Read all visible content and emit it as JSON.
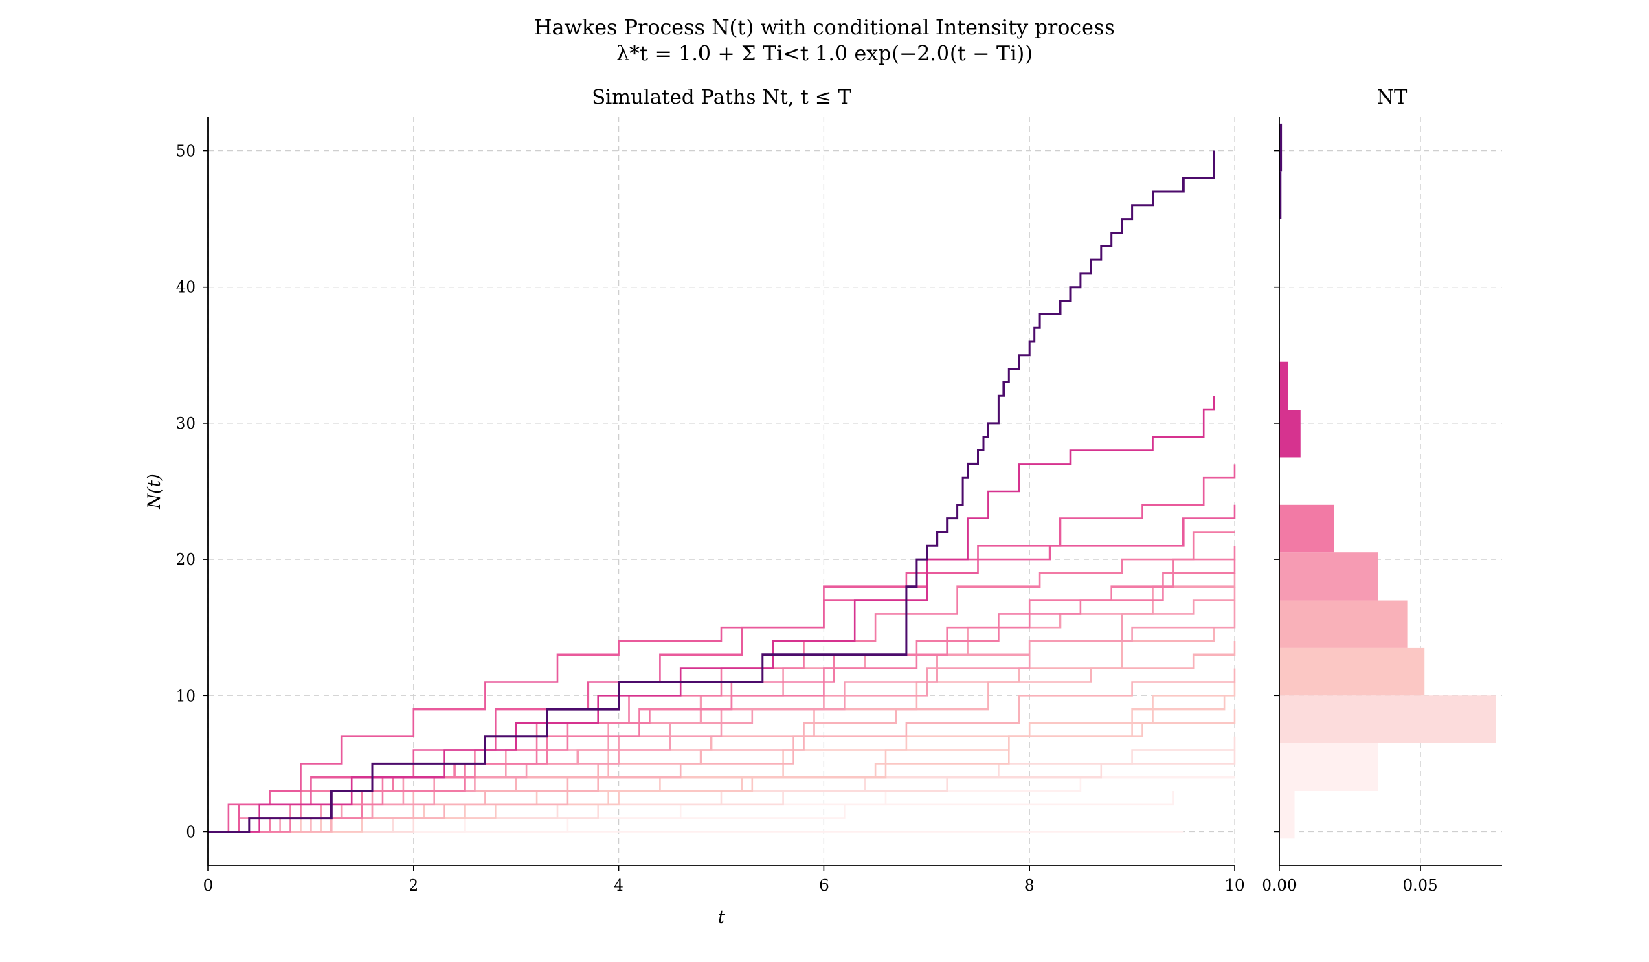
{
  "suptitle_line1": "Hawkes Process N(t) with conditional Intensity process",
  "suptitle_line2": "λ*t = 1.0 + Σ Ti<t 1.0 exp(−2.0(t − Ti))",
  "chart_data": [
    {
      "type": "line",
      "title": "Simulated Paths Nt, t ≤ T",
      "xlabel": "t",
      "ylabel": "N(t)",
      "xlim": [
        0,
        10
      ],
      "ylim": [
        -2.5,
        52.5
      ],
      "xticks": [
        "0",
        "2",
        "4",
        "6",
        "8",
        "10"
      ],
      "yticks": [
        "0",
        "10",
        "20",
        "30",
        "40",
        "50"
      ],
      "grid": true,
      "colormap": "RdPu (colored by terminal value N_T)",
      "colors": [
        "#fff0f0",
        "#fcdcdc",
        "#fbc7c4",
        "#f9b1b9",
        "#f69bb3",
        "#f27aa5",
        "#e95a9b",
        "#d6338f",
        "#4c0b6b"
      ],
      "series": [
        {
          "name": "",
          "x": [
            0.0,
            0.4,
            1.2,
            1.6,
            2.7,
            3.3,
            4.0,
            5.4,
            6.8,
            6.9,
            7.0,
            7.1,
            7.2,
            7.3,
            7.35,
            7.4,
            7.5,
            7.55,
            7.6,
            7.7,
            7.75,
            7.8,
            7.9,
            8.0,
            8.05,
            8.1,
            8.3,
            8.4,
            8.5,
            8.6,
            8.7,
            8.8,
            8.9,
            9.0,
            9.2,
            9.5,
            9.8
          ],
          "y": [
            0,
            1,
            3,
            5,
            7,
            9,
            11,
            13,
            18,
            20,
            21,
            22,
            23,
            24,
            26,
            27,
            28,
            29,
            30,
            32,
            33,
            34,
            35,
            36,
            37,
            38,
            39,
            40,
            41,
            42,
            43,
            44,
            45,
            46,
            47,
            48,
            50
          ]
        },
        {
          "name": "",
          "x": [
            0.0,
            0.5,
            1.4,
            2.3,
            3.0,
            3.8,
            4.6,
            5.5,
            6.3,
            7.0,
            7.4,
            7.6,
            7.9,
            8.4,
            9.2,
            9.7,
            9.8
          ],
          "y": [
            0,
            2,
            4,
            6,
            8,
            10,
            12,
            14,
            17,
            20,
            23,
            25,
            27,
            28,
            29,
            31,
            32
          ]
        },
        {
          "name": "",
          "x": [
            0.0,
            0.3,
            1.0,
            2.0,
            2.8,
            3.7,
            4.4,
            5.2,
            6.0,
            6.8,
            7.5,
            8.3,
            9.1,
            9.7,
            10.0
          ],
          "y": [
            0,
            2,
            4,
            6,
            9,
            11,
            13,
            15,
            17,
            19,
            21,
            23,
            24,
            26,
            27
          ]
        },
        {
          "name": "",
          "x": [
            0.0,
            0.2,
            0.6,
            0.9,
            1.3,
            2.0,
            2.7,
            3.4,
            4.0,
            5.0,
            6.0,
            7.0,
            8.2,
            9.5,
            10.0
          ],
          "y": [
            0,
            2,
            3,
            5,
            7,
            9,
            11,
            13,
            14,
            15,
            18,
            20,
            21,
            23,
            24
          ]
        },
        {
          "name": "",
          "x": [
            0.0,
            0.6,
            1.5,
            2.5,
            3.2,
            4.1,
            5.0,
            5.8,
            6.5,
            7.3,
            8.1,
            8.9,
            9.6,
            10.0
          ],
          "y": [
            0,
            1,
            3,
            5,
            8,
            10,
            12,
            14,
            16,
            18,
            19,
            20,
            22,
            22
          ]
        },
        {
          "name": "",
          "x": [
            0.0,
            0.3,
            0.9,
            1.8,
            2.6,
            3.5,
            4.3,
            5.1,
            6.1,
            7.2,
            8.0,
            8.8,
            9.4,
            10.0
          ],
          "y": [
            0,
            1,
            3,
            4,
            6,
            8,
            9,
            11,
            13,
            15,
            17,
            18,
            20,
            21
          ]
        },
        {
          "name": "",
          "x": [
            0.0,
            0.8,
            1.7,
            2.4,
            3.3,
            4.2,
            5.1,
            6.0,
            6.9,
            7.7,
            8.5,
            9.3,
            10.0
          ],
          "y": [
            0,
            2,
            4,
            5,
            7,
            9,
            10,
            12,
            14,
            16,
            17,
            19,
            20
          ]
        },
        {
          "name": "",
          "x": [
            0.0,
            0.4,
            1.1,
            1.9,
            2.9,
            3.9,
            4.8,
            5.6,
            6.4,
            7.4,
            8.3,
            9.2,
            10.0
          ],
          "y": [
            0,
            1,
            2,
            4,
            6,
            8,
            10,
            12,
            13,
            15,
            16,
            18,
            19
          ]
        },
        {
          "name": "",
          "x": [
            0.0,
            0.7,
            1.6,
            2.6,
            3.6,
            4.5,
            5.3,
            6.2,
            7.1,
            8.0,
            8.9,
            9.6,
            10.0
          ],
          "y": [
            0,
            1,
            3,
            5,
            6,
            8,
            9,
            11,
            13,
            14,
            16,
            17,
            18
          ]
        },
        {
          "name": "",
          "x": [
            0.0,
            0.5,
            1.3,
            2.2,
            3.1,
            4.0,
            5.0,
            6.0,
            7.0,
            8.0,
            9.0,
            10.0
          ],
          "y": [
            0,
            1,
            2,
            4,
            5,
            7,
            9,
            10,
            12,
            14,
            15,
            17
          ]
        },
        {
          "name": "",
          "x": [
            0.0,
            1.0,
            2.0,
            3.0,
            3.9,
            4.9,
            5.9,
            6.9,
            7.9,
            8.9,
            9.8
          ],
          "y": [
            0,
            1,
            3,
            4,
            6,
            7,
            9,
            11,
            12,
            14,
            15
          ]
        },
        {
          "name": "",
          "x": [
            0.0,
            0.6,
            1.6,
            2.7,
            3.8,
            4.8,
            5.8,
            6.7,
            7.6,
            8.6,
            9.6,
            10.0
          ],
          "y": [
            0,
            1,
            2,
            3,
            5,
            6,
            8,
            9,
            11,
            12,
            13,
            14
          ]
        },
        {
          "name": "",
          "x": [
            0.0,
            1.2,
            2.3,
            3.5,
            4.6,
            5.7,
            6.8,
            7.9,
            9.0,
            10.0
          ],
          "y": [
            0,
            1,
            2,
            4,
            5,
            7,
            8,
            10,
            11,
            12
          ]
        },
        {
          "name": "",
          "x": [
            0.0,
            0.9,
            2.1,
            3.2,
            4.4,
            5.6,
            6.8,
            8.0,
            9.2,
            10.0
          ],
          "y": [
            0,
            1,
            2,
            3,
            4,
            6,
            7,
            8,
            10,
            11
          ]
        },
        {
          "name": "",
          "x": [
            0.0,
            1.5,
            2.8,
            4.0,
            5.3,
            6.6,
            7.8,
            9.0,
            9.9
          ],
          "y": [
            0,
            1,
            2,
            3,
            4,
            6,
            7,
            9,
            10
          ]
        },
        {
          "name": "",
          "x": [
            0.0,
            1.1,
            2.5,
            3.9,
            5.2,
            6.5,
            7.8,
            9.1,
            10.0
          ],
          "y": [
            0,
            1,
            2,
            3,
            4,
            5,
            7,
            8,
            9
          ]
        },
        {
          "name": "",
          "x": [
            0.0,
            1.8,
            3.4,
            5.0,
            6.4,
            7.7,
            9.0,
            10.0
          ],
          "y": [
            0,
            1,
            2,
            3,
            4,
            5,
            6,
            7
          ]
        },
        {
          "name": "",
          "x": [
            0.0,
            2.0,
            3.8,
            5.6,
            7.2,
            8.7,
            10.0
          ],
          "y": [
            0,
            1,
            2,
            3,
            4,
            5,
            6
          ]
        },
        {
          "name": "",
          "x": [
            0.0,
            2.5,
            4.6,
            6.6,
            8.5,
            10.0
          ],
          "y": [
            0,
            1,
            2,
            3,
            4,
            4
          ]
        },
        {
          "name": "",
          "x": [
            0.0,
            3.5,
            6.2,
            8.6,
            9.4
          ],
          "y": [
            0,
            1,
            2,
            2,
            3
          ]
        },
        {
          "name": "",
          "x": [
            0.0,
            9.5
          ],
          "y": [
            0,
            0
          ]
        }
      ]
    },
    {
      "type": "bar",
      "orientation": "horizontal",
      "title": "NT",
      "xlim": [
        0,
        0.079
      ],
      "ylim": [
        -2.5,
        52.5
      ],
      "xticks": [
        "0.00",
        "0.05"
      ],
      "grid": true,
      "bins": [
        {
          "y0": -0.5,
          "y1": 3.0,
          "density": 0.0055
        },
        {
          "y0": 3.0,
          "y1": 6.5,
          "density": 0.035
        },
        {
          "y0": 6.5,
          "y1": 10.0,
          "density": 0.077
        },
        {
          "y0": 10.0,
          "y1": 13.5,
          "density": 0.0515
        },
        {
          "y0": 13.5,
          "y1": 17.0,
          "density": 0.0455
        },
        {
          "y0": 17.0,
          "y1": 20.5,
          "density": 0.035
        },
        {
          "y0": 20.5,
          "y1": 24.0,
          "density": 0.0195
        },
        {
          "y0": 24.0,
          "y1": 27.5,
          "density": 0.0
        },
        {
          "y0": 27.5,
          "y1": 31.0,
          "density": 0.0075
        },
        {
          "y0": 31.0,
          "y1": 34.5,
          "density": 0.003
        },
        {
          "y0": 34.5,
          "y1": 38.0,
          "density": 0.0
        },
        {
          "y0": 38.0,
          "y1": 41.5,
          "density": 0.0
        },
        {
          "y0": 41.5,
          "y1": 45.0,
          "density": 0.0
        },
        {
          "y0": 45.0,
          "y1": 48.5,
          "density": 0.0008
        },
        {
          "y0": 48.5,
          "y1": 52.0,
          "density": 0.001
        }
      ]
    }
  ]
}
